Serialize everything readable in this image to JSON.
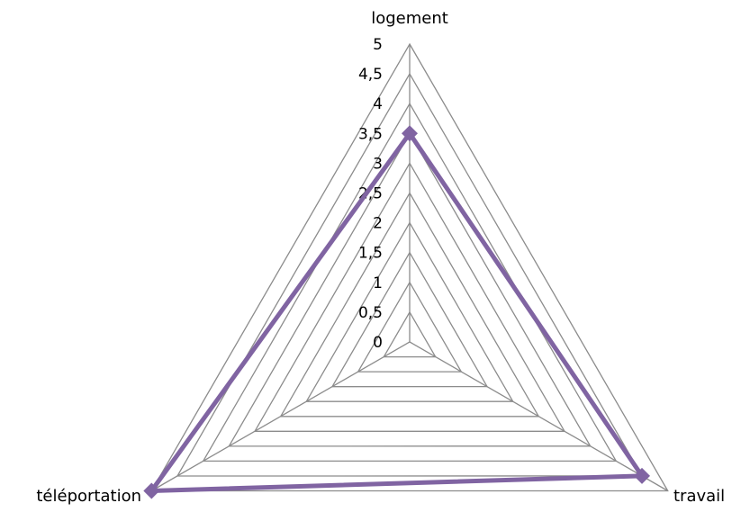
{
  "chart_data": {
    "type": "radar",
    "title": "",
    "categories": [
      "logement",
      "travail",
      "téléportation"
    ],
    "ticks": [
      "0",
      "0,5",
      "1",
      "1,5",
      "2",
      "2,5",
      "3",
      "3,5",
      "4",
      "4,5",
      "5"
    ],
    "rlim": [
      0,
      5
    ],
    "grid": true,
    "legend": "none",
    "series": [
      {
        "values": [
          3.5,
          4.5,
          5
        ]
      }
    ],
    "colors": {
      "series": "#8064a2",
      "grid": "#8c8c8c",
      "text": "#000000"
    }
  }
}
